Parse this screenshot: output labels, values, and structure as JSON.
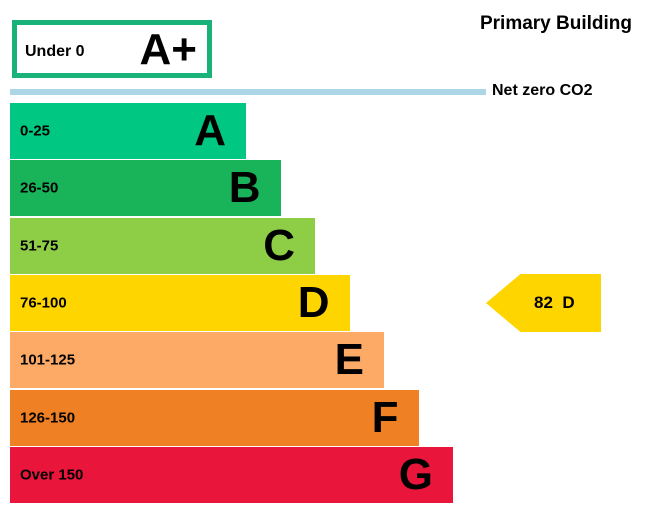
{
  "chart_data": {
    "type": "bar",
    "title": "Primary Building",
    "reference_line": {
      "label": "Net zero CO2",
      "color": "#add7e6"
    },
    "top_band": {
      "range": "Under 0",
      "letter": "A+",
      "border_color": "#19b37a"
    },
    "categories": [
      "0-25",
      "26-50",
      "51-75",
      "76-100",
      "101-125",
      "126-150",
      "Over 150"
    ],
    "letters": [
      "A",
      "B",
      "C",
      "D",
      "E",
      "F",
      "G"
    ],
    "colors": [
      "#00c781",
      "#19b459",
      "#8dce46",
      "#ffd500",
      "#fcaa65",
      "#ef8023",
      "#e9153b"
    ],
    "current_rating": {
      "value": 82,
      "band": "D",
      "color": "#ffd500"
    }
  }
}
